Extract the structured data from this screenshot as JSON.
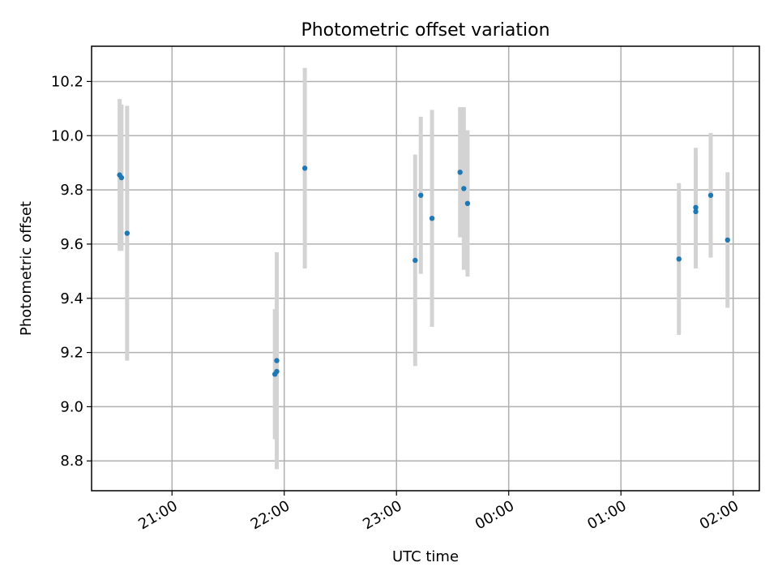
{
  "chart_data": {
    "type": "scatter",
    "title": "Photometric offset variation",
    "xlabel": "UTC time",
    "ylabel": "Photometric offset",
    "date": "",
    "xlim": [
      "20:17",
      "02:14"
    ],
    "ylim": [
      8.69,
      10.33
    ],
    "x_ticks": [
      "21:00",
      "22:00",
      "23:00",
      "00:00",
      "01:00",
      "02:00"
    ],
    "y_ticks": [
      8.8,
      9.0,
      9.2,
      9.4,
      9.6,
      9.8,
      10.0,
      10.2
    ],
    "grid": true,
    "colors": {
      "point": "#1f77b4",
      "errorbar": "#d3d3d3"
    },
    "points": [
      {
        "t": "20:32",
        "y": 9.855,
        "err": 0.28
      },
      {
        "t": "20:33",
        "y": 9.845,
        "err": 0.27
      },
      {
        "t": "20:36",
        "y": 9.64,
        "err": 0.47
      },
      {
        "t": "21:55",
        "y": 9.12,
        "err": 0.24
      },
      {
        "t": "21:56",
        "y": 9.13,
        "err": 0.36
      },
      {
        "t": "21:56",
        "y": 9.17,
        "err": 0.4
      },
      {
        "t": "22:11",
        "y": 9.88,
        "err": 0.37
      },
      {
        "t": "23:10",
        "y": 9.54,
        "err": 0.39
      },
      {
        "t": "23:13",
        "y": 9.78,
        "err": 0.29
      },
      {
        "t": "23:19",
        "y": 9.695,
        "err": 0.4
      },
      {
        "t": "23:34",
        "y": 9.865,
        "err": 0.24
      },
      {
        "t": "23:36",
        "y": 9.805,
        "err": 0.3
      },
      {
        "t": "23:38",
        "y": 9.75,
        "err": 0.27
      },
      {
        "t": "01:31",
        "y": 9.545,
        "err": 0.28
      },
      {
        "t": "01:40",
        "y": 9.72,
        "err": 0.21
      },
      {
        "t": "01:40",
        "y": 9.735,
        "err": 0.22
      },
      {
        "t": "01:48",
        "y": 9.78,
        "err": 0.23
      },
      {
        "t": "01:57",
        "y": 9.615,
        "err": 0.25
      }
    ]
  }
}
